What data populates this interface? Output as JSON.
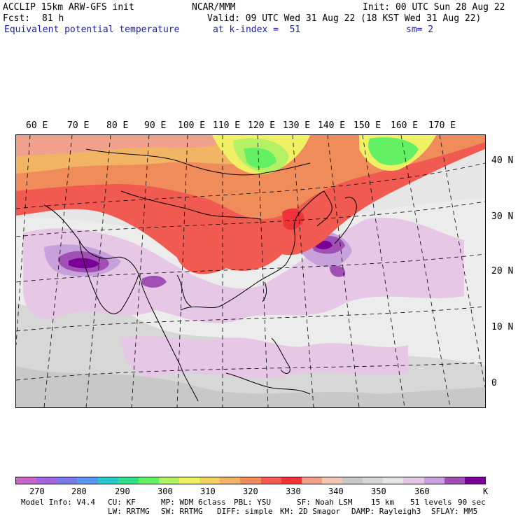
{
  "header": {
    "model": "ACCLIP 15km ARW-GFS init",
    "center": "NCAR/MMM",
    "init": "Init: 00 UTC Sun 28 Aug 22",
    "fcst_label": "Fcst:",
    "fcst_value": "81 h",
    "valid": "Valid: 09 UTC Wed 31 Aug 22 (18 KST Wed 31 Aug 22)",
    "field": "Equivalent potential temperature",
    "level": "at k-index =  51",
    "smoothing": "sm= 2"
  },
  "map": {
    "longitude_labels": [
      "60 E",
      "70 E",
      "80 E",
      "90 E",
      "100 E",
      "110 E",
      "120 E",
      "130 E",
      "140 E",
      "150 E",
      "160 E",
      "170 E"
    ],
    "latitude_labels": [
      "40 N",
      "30 N",
      "20 N",
      "10 N",
      "0"
    ]
  },
  "colorbar": {
    "colors": [
      "#c864c8",
      "#a064dc",
      "#7878e6",
      "#5a96f0",
      "#28c8c8",
      "#2ee08c",
      "#64f064",
      "#b4f064",
      "#f0f064",
      "#f0d264",
      "#f0b464",
      "#f08c5a",
      "#f05a50",
      "#f0323c",
      "#f0a08c",
      "#f0c8b4",
      "#c8c8c8",
      "#d7d7d7",
      "#e6e6e6",
      "#e6c8e6",
      "#c8a0dc",
      "#a050b4",
      "#780096"
    ],
    "ticks": [
      "270",
      "280",
      "290",
      "300",
      "310",
      "320",
      "330",
      "340",
      "350",
      "360"
    ],
    "unit": "K"
  },
  "model_info": {
    "line1": [
      "Model Info: V4.4",
      "CU: KF",
      "MP: WDM 6class",
      "PBL: YSU",
      "SF: Noah LSM",
      "15 km",
      "51 levels",
      "90 sec"
    ],
    "line2": [
      "LW: RRTMG",
      "SW: RRTMG",
      "DIFF: simple",
      "KM: 2D Smagor",
      "DAMP: Rayleigh3",
      "SFLAY: MM5"
    ]
  }
}
